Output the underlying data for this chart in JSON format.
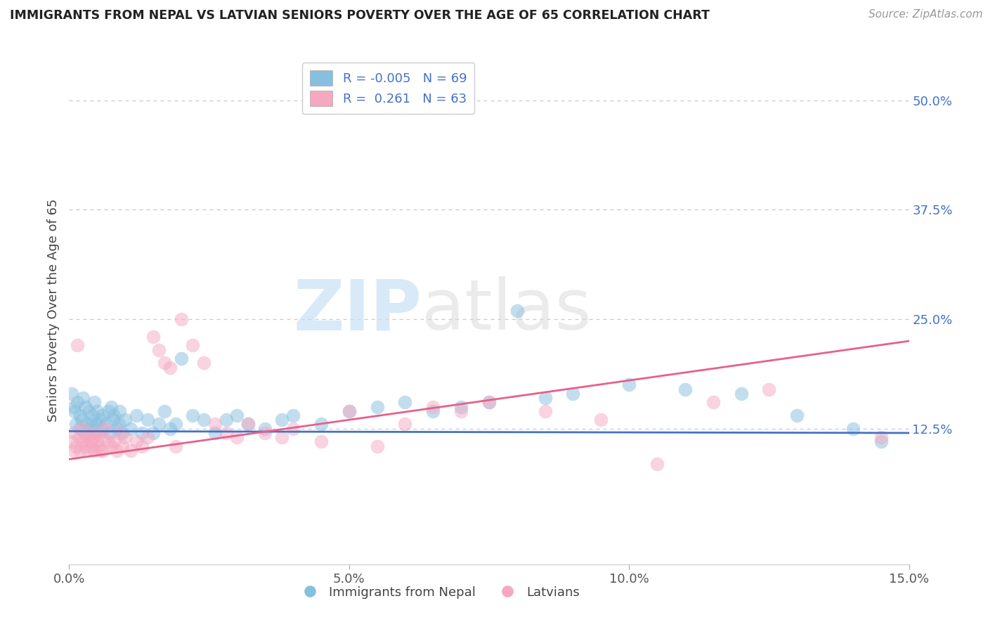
{
  "title": "IMMIGRANTS FROM NEPAL VS LATVIAN SENIORS POVERTY OVER THE AGE OF 65 CORRELATION CHART",
  "source": "Source: ZipAtlas.com",
  "ylabel": "Seniors Poverty Over the Age of 65",
  "xlim": [
    0.0,
    15.0
  ],
  "ylim": [
    -3.0,
    55.0
  ],
  "xticks": [
    0.0,
    5.0,
    10.0,
    15.0
  ],
  "xticklabels": [
    "0.0%",
    "5.0%",
    "10.0%",
    "15.0%"
  ],
  "yticks": [
    12.5,
    25.0,
    37.5,
    50.0
  ],
  "yticklabels": [
    "12.5%",
    "25.0%",
    "37.5%",
    "50.0%"
  ],
  "legend_label_nepal": "Immigrants from Nepal",
  "legend_label_latvians": "Latvians",
  "color_nepal": "#87bfdf",
  "color_latvians": "#f5a8c0",
  "trendline_color_nepal": "#4472c4",
  "trendline_color_latvians": "#e8608a",
  "tick_color": "#4472c4",
  "R_nepal": -0.005,
  "N_nepal": 69,
  "R_latvians": 0.261,
  "N_latvians": 63,
  "watermark_zip": "ZIP",
  "watermark_atlas": "atlas",
  "background_color": "#ffffff",
  "grid_color": "#bbbbbb",
  "nepal_trendline_y0": 12.2,
  "nepal_trendline_y1": 12.0,
  "latvian_trendline_y0": 9.0,
  "latvian_trendline_y1": 22.5,
  "nepal_points": [
    [
      0.05,
      16.5
    ],
    [
      0.08,
      15.0
    ],
    [
      0.1,
      14.5
    ],
    [
      0.12,
      13.0
    ],
    [
      0.15,
      15.5
    ],
    [
      0.18,
      12.5
    ],
    [
      0.2,
      14.0
    ],
    [
      0.22,
      13.5
    ],
    [
      0.25,
      16.0
    ],
    [
      0.28,
      12.0
    ],
    [
      0.3,
      15.0
    ],
    [
      0.32,
      13.0
    ],
    [
      0.35,
      14.5
    ],
    [
      0.38,
      12.5
    ],
    [
      0.4,
      13.0
    ],
    [
      0.42,
      14.0
    ],
    [
      0.45,
      15.5
    ],
    [
      0.48,
      13.0
    ],
    [
      0.5,
      14.5
    ],
    [
      0.52,
      12.0
    ],
    [
      0.55,
      13.5
    ],
    [
      0.58,
      14.0
    ],
    [
      0.6,
      12.5
    ],
    [
      0.65,
      13.0
    ],
    [
      0.7,
      14.5
    ],
    [
      0.72,
      12.0
    ],
    [
      0.75,
      15.0
    ],
    [
      0.78,
      13.5
    ],
    [
      0.8,
      14.0
    ],
    [
      0.85,
      12.5
    ],
    [
      0.88,
      13.0
    ],
    [
      0.9,
      14.5
    ],
    [
      0.95,
      12.0
    ],
    [
      1.0,
      13.5
    ],
    [
      1.1,
      12.5
    ],
    [
      1.2,
      14.0
    ],
    [
      1.3,
      12.0
    ],
    [
      1.4,
      13.5
    ],
    [
      1.5,
      12.0
    ],
    [
      1.6,
      13.0
    ],
    [
      1.7,
      14.5
    ],
    [
      1.8,
      12.5
    ],
    [
      1.9,
      13.0
    ],
    [
      2.0,
      20.5
    ],
    [
      2.2,
      14.0
    ],
    [
      2.4,
      13.5
    ],
    [
      2.6,
      12.0
    ],
    [
      2.8,
      13.5
    ],
    [
      3.0,
      14.0
    ],
    [
      3.2,
      13.0
    ],
    [
      3.5,
      12.5
    ],
    [
      3.8,
      13.5
    ],
    [
      4.0,
      14.0
    ],
    [
      4.5,
      13.0
    ],
    [
      5.0,
      14.5
    ],
    [
      5.5,
      15.0
    ],
    [
      6.0,
      15.5
    ],
    [
      6.5,
      14.5
    ],
    [
      7.0,
      15.0
    ],
    [
      7.5,
      15.5
    ],
    [
      8.0,
      26.0
    ],
    [
      8.5,
      16.0
    ],
    [
      9.0,
      16.5
    ],
    [
      10.0,
      17.5
    ],
    [
      11.0,
      17.0
    ],
    [
      12.0,
      16.5
    ],
    [
      13.0,
      14.0
    ],
    [
      14.0,
      12.5
    ],
    [
      14.5,
      11.0
    ]
  ],
  "latvian_points": [
    [
      0.05,
      11.0
    ],
    [
      0.08,
      10.0
    ],
    [
      0.1,
      12.0
    ],
    [
      0.12,
      10.5
    ],
    [
      0.15,
      22.0
    ],
    [
      0.18,
      11.5
    ],
    [
      0.2,
      10.0
    ],
    [
      0.22,
      12.5
    ],
    [
      0.25,
      11.0
    ],
    [
      0.28,
      10.5
    ],
    [
      0.3,
      11.5
    ],
    [
      0.32,
      10.0
    ],
    [
      0.35,
      12.0
    ],
    [
      0.38,
      11.0
    ],
    [
      0.4,
      10.5
    ],
    [
      0.42,
      11.5
    ],
    [
      0.45,
      10.0
    ],
    [
      0.48,
      12.0
    ],
    [
      0.5,
      11.0
    ],
    [
      0.52,
      10.5
    ],
    [
      0.55,
      10.0
    ],
    [
      0.58,
      11.5
    ],
    [
      0.6,
      10.0
    ],
    [
      0.65,
      12.5
    ],
    [
      0.7,
      11.0
    ],
    [
      0.75,
      10.5
    ],
    [
      0.8,
      11.0
    ],
    [
      0.85,
      10.0
    ],
    [
      0.9,
      12.0
    ],
    [
      0.95,
      10.5
    ],
    [
      1.0,
      11.5
    ],
    [
      1.1,
      10.0
    ],
    [
      1.2,
      11.0
    ],
    [
      1.3,
      10.5
    ],
    [
      1.4,
      11.5
    ],
    [
      1.5,
      23.0
    ],
    [
      1.6,
      21.5
    ],
    [
      1.7,
      20.0
    ],
    [
      1.8,
      19.5
    ],
    [
      1.9,
      10.5
    ],
    [
      2.0,
      25.0
    ],
    [
      2.2,
      22.0
    ],
    [
      2.4,
      20.0
    ],
    [
      2.6,
      13.0
    ],
    [
      2.8,
      12.0
    ],
    [
      3.0,
      11.5
    ],
    [
      3.2,
      13.0
    ],
    [
      3.5,
      12.0
    ],
    [
      3.8,
      11.5
    ],
    [
      4.0,
      12.5
    ],
    [
      4.5,
      11.0
    ],
    [
      5.0,
      14.5
    ],
    [
      5.5,
      10.5
    ],
    [
      6.0,
      13.0
    ],
    [
      6.5,
      15.0
    ],
    [
      7.0,
      14.5
    ],
    [
      7.5,
      15.5
    ],
    [
      8.5,
      14.5
    ],
    [
      9.5,
      13.5
    ],
    [
      10.5,
      8.5
    ],
    [
      11.5,
      15.5
    ],
    [
      12.5,
      17.0
    ],
    [
      14.5,
      11.5
    ]
  ]
}
